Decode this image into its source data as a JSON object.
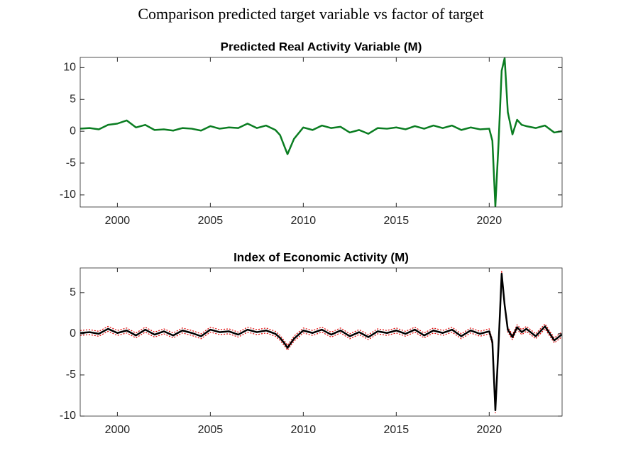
{
  "figure_title": "Comparison predicted target variable vs factor of target",
  "chart_data": [
    {
      "type": "line",
      "title": "Predicted Real Activity Variable (M)",
      "x": [
        1998,
        1998.5,
        1999,
        1999.5,
        2000,
        2000.5,
        2001,
        2001.5,
        2002,
        2002.5,
        2003,
        2003.5,
        2004,
        2004.5,
        2005,
        2005.5,
        2006,
        2006.5,
        2007,
        2007.5,
        2008,
        2008.5,
        2008.75,
        2009,
        2009.15,
        2009.5,
        2010,
        2010.5,
        2011,
        2011.5,
        2012,
        2012.5,
        2013,
        2013.5,
        2014,
        2014.5,
        2015,
        2015.5,
        2016,
        2016.5,
        2017,
        2017.5,
        2018,
        2018.5,
        2019,
        2019.5,
        2020,
        2020.17,
        2020.33,
        2020.5,
        2020.67,
        2020.83,
        2021,
        2021.25,
        2021.5,
        2021.75,
        2022,
        2022.5,
        2023,
        2023.5,
        2023.9
      ],
      "series": [
        {
          "color": "#0a7d21",
          "width": 2.5,
          "dash": "none",
          "values": [
            0.4,
            0.5,
            0.3,
            1.0,
            1.2,
            1.7,
            0.6,
            1.0,
            0.2,
            0.3,
            0.1,
            0.5,
            0.4,
            0.1,
            0.8,
            0.4,
            0.6,
            0.5,
            1.2,
            0.5,
            0.9,
            0.2,
            -0.6,
            -2.5,
            -3.6,
            -1.2,
            0.6,
            0.2,
            0.9,
            0.5,
            0.7,
            -0.2,
            0.2,
            -0.4,
            0.5,
            0.4,
            0.6,
            0.3,
            0.8,
            0.4,
            0.9,
            0.5,
            0.9,
            0.2,
            0.6,
            0.3,
            0.4,
            -1.5,
            -11.8,
            -2,
            9.5,
            11.5,
            3,
            -0.5,
            1.8,
            1.0,
            0.8,
            0.5,
            0.9,
            -0.2,
            0.0
          ]
        }
      ],
      "xlim": [
        1998,
        2023.92
      ],
      "xticks": [
        2000,
        2005,
        2010,
        2015,
        2020
      ],
      "ylim": [
        -11.9,
        11.6
      ],
      "yticks": [
        -10,
        -5,
        0,
        5,
        10
      ]
    },
    {
      "type": "line",
      "title": "Index of Economic Activity (M)",
      "x": [
        1998,
        1998.5,
        1999,
        1999.5,
        2000,
        2000.5,
        2001,
        2001.5,
        2002,
        2002.5,
        2003,
        2003.5,
        2004,
        2004.5,
        2005,
        2005.5,
        2006,
        2006.5,
        2007,
        2007.5,
        2008,
        2008.5,
        2008.75,
        2009,
        2009.15,
        2009.5,
        2010,
        2010.5,
        2011,
        2011.5,
        2012,
        2012.5,
        2013,
        2013.5,
        2014,
        2014.5,
        2015,
        2015.5,
        2016,
        2016.5,
        2017,
        2017.5,
        2018,
        2018.5,
        2019,
        2019.5,
        2020,
        2020.17,
        2020.33,
        2020.5,
        2020.67,
        2020.83,
        2021,
        2021.25,
        2021.5,
        2021.75,
        2022,
        2022.5,
        2023,
        2023.5,
        2023.9
      ],
      "series": [
        {
          "color": "#e00000",
          "width": 1.2,
          "dash": "2 2",
          "values": [
            0.4,
            0.5,
            0.3,
            0.9,
            0.4,
            0.7,
            0.1,
            0.8,
            0.2,
            0.6,
            0.1,
            0.7,
            0.4,
            0.0,
            0.8,
            0.5,
            0.6,
            0.2,
            0.8,
            0.5,
            0.7,
            0.3,
            -0.2,
            -0.9,
            -1.4,
            -0.3,
            0.7,
            0.4,
            0.8,
            0.2,
            0.7,
            0.0,
            0.5,
            -0.1,
            0.6,
            0.4,
            0.7,
            0.3,
            0.8,
            0.1,
            0.7,
            0.4,
            0.8,
            0.0,
            0.7,
            0.3,
            0.6,
            -0.7,
            -9.0,
            -1.2,
            7.6,
            3.8,
            0.8,
            -0.1,
            1.1,
            0.5,
            0.9,
            0.0,
            1.2,
            -0.5,
            0.2
          ]
        },
        {
          "color": "#e00000",
          "width": 1.2,
          "dash": "2 2",
          "values": [
            -0.2,
            -0.1,
            -0.3,
            0.3,
            -0.2,
            0.1,
            -0.5,
            0.2,
            -0.4,
            0.0,
            -0.5,
            0.1,
            -0.2,
            -0.6,
            0.2,
            -0.1,
            0.0,
            -0.4,
            0.2,
            -0.1,
            0.1,
            -0.3,
            -0.8,
            -1.5,
            -2.0,
            -0.9,
            0.1,
            -0.2,
            0.2,
            -0.4,
            0.1,
            -0.6,
            -0.1,
            -0.7,
            0.0,
            -0.2,
            0.1,
            -0.3,
            0.2,
            -0.5,
            0.1,
            -0.2,
            0.2,
            -0.6,
            0.1,
            -0.3,
            0.0,
            -1.3,
            -9.6,
            -1.8,
            7.0,
            3.2,
            0.2,
            -0.7,
            0.5,
            -0.1,
            0.3,
            -0.6,
            0.6,
            -1.1,
            -0.4
          ]
        },
        {
          "color": "#000000",
          "width": 2.5,
          "dash": "none",
          "values": [
            0.1,
            0.2,
            0.0,
            0.6,
            0.1,
            0.4,
            -0.2,
            0.5,
            -0.1,
            0.3,
            -0.2,
            0.4,
            0.1,
            -0.3,
            0.5,
            0.2,
            0.3,
            -0.1,
            0.5,
            0.2,
            0.4,
            0.0,
            -0.5,
            -1.2,
            -1.7,
            -0.6,
            0.4,
            0.1,
            0.5,
            -0.1,
            0.4,
            -0.3,
            0.2,
            -0.4,
            0.3,
            0.1,
            0.4,
            0.0,
            0.5,
            -0.2,
            0.4,
            0.1,
            0.5,
            -0.3,
            0.4,
            0.0,
            0.3,
            -1.0,
            -9.3,
            -1.5,
            7.3,
            3.5,
            0.5,
            -0.4,
            0.8,
            0.2,
            0.6,
            -0.3,
            0.9,
            -0.8,
            -0.1
          ]
        }
      ],
      "xlim": [
        1998,
        2023.92
      ],
      "xticks": [
        2000,
        2005,
        2010,
        2015,
        2020
      ],
      "ylim": [
        -10,
        8
      ],
      "yticks": [
        -10,
        -5,
        0,
        5
      ]
    }
  ]
}
